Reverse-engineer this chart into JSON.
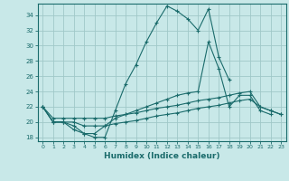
{
  "xlabel": "Humidex (Indice chaleur)",
  "ylabel": "",
  "background_color": "#c8e8e8",
  "grid_color": "#a0c8c8",
  "line_color": "#1a6b6b",
  "xlim": [
    -0.5,
    23.5
  ],
  "ylim": [
    17.5,
    35.5
  ],
  "xticks": [
    0,
    1,
    2,
    3,
    4,
    5,
    6,
    7,
    8,
    9,
    10,
    11,
    12,
    13,
    14,
    15,
    16,
    17,
    18,
    19,
    20,
    21,
    22,
    23
  ],
  "yticks": [
    18,
    20,
    22,
    24,
    26,
    28,
    30,
    32,
    34
  ],
  "series": [
    [
      22,
      20,
      20,
      19,
      18.5,
      18,
      18,
      21.5,
      25,
      27.5,
      30.5,
      33,
      35.2,
      34.5,
      33.5,
      32,
      34.8,
      28.5,
      25.5,
      null,
      null,
      null,
      null,
      null
    ],
    [
      22,
      20,
      20,
      19.5,
      18.5,
      18.5,
      19.5,
      20.5,
      21,
      21.5,
      22,
      22.5,
      23,
      23.5,
      23.8,
      24,
      30.5,
      27,
      22,
      23.5,
      23.5,
      21.5,
      21,
      null
    ],
    [
      22,
      20.5,
      20.5,
      20.5,
      20.5,
      20.5,
      20.5,
      20.8,
      21,
      21.2,
      21.5,
      21.8,
      22,
      22.2,
      22.5,
      22.8,
      23,
      23.2,
      23.5,
      23.8,
      24,
      22,
      21.5,
      21
    ],
    [
      22,
      20,
      20,
      20,
      19.5,
      19.5,
      19.5,
      19.8,
      20,
      20.2,
      20.5,
      20.8,
      21,
      21.2,
      21.5,
      21.8,
      22,
      22.2,
      22.5,
      22.8,
      23,
      22,
      21.5,
      21
    ]
  ]
}
